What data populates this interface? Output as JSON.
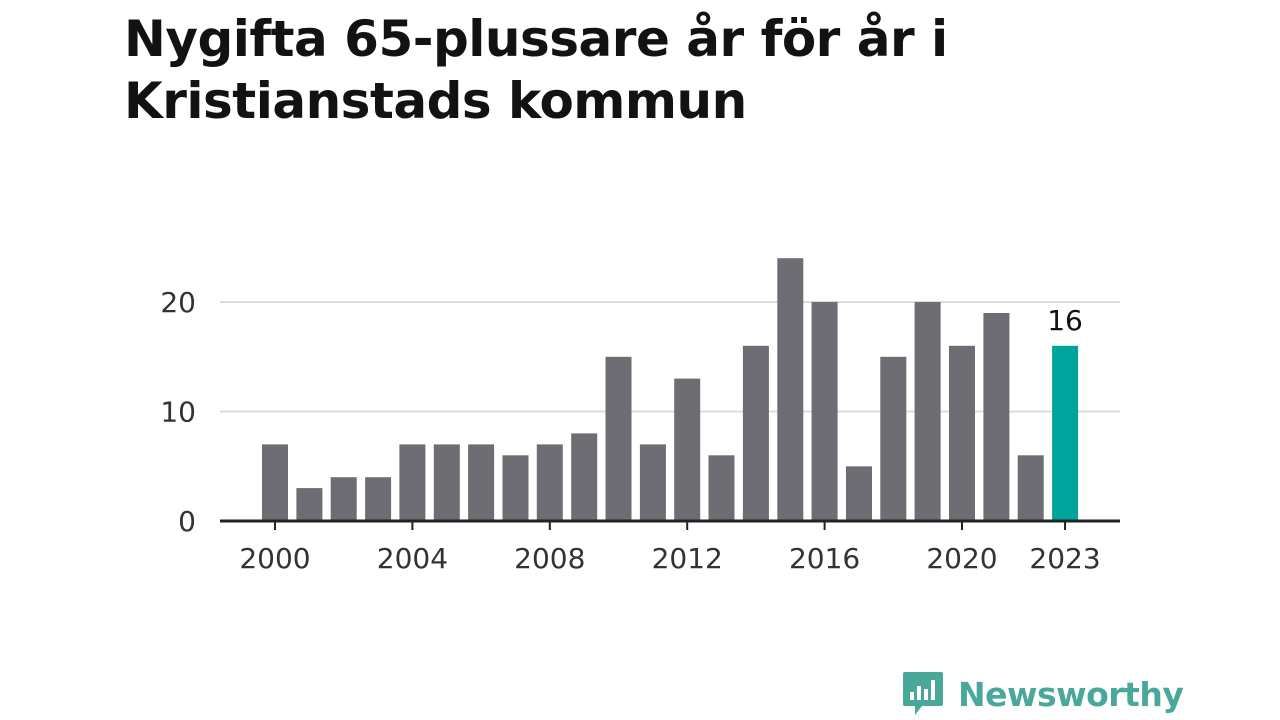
{
  "title": "Nygifta 65-plussare år för år i Kristianstads kommun",
  "brand": {
    "name": "Newsworthy",
    "color": "#4aa89a"
  },
  "colors": {
    "bar": "#6e6d73",
    "highlight": "#00a49a",
    "grid": "#dddddd",
    "axis": "#222222"
  },
  "chart_data": {
    "type": "bar",
    "title": "Nygifta 65-plussare år för år i Kristianstads kommun",
    "xlabel": "",
    "ylabel": "",
    "categories": [
      "2000",
      "2001",
      "2002",
      "2003",
      "2004",
      "2005",
      "2006",
      "2007",
      "2008",
      "2009",
      "2010",
      "2011",
      "2012",
      "2013",
      "2014",
      "2015",
      "2016",
      "2017",
      "2018",
      "2019",
      "2020",
      "2021",
      "2022",
      "2023"
    ],
    "values": [
      7,
      3,
      4,
      4,
      7,
      7,
      7,
      6,
      7,
      8,
      15,
      7,
      13,
      6,
      16,
      24,
      20,
      5,
      15,
      20,
      16,
      19,
      6,
      16
    ],
    "ylim": [
      0,
      25
    ],
    "yticks": [
      0,
      10,
      20
    ],
    "xticks": [
      "2000",
      "2004",
      "2008",
      "2012",
      "2016",
      "2020",
      "2023"
    ],
    "highlight": {
      "category": "2023",
      "label": "16"
    },
    "grid": true
  }
}
